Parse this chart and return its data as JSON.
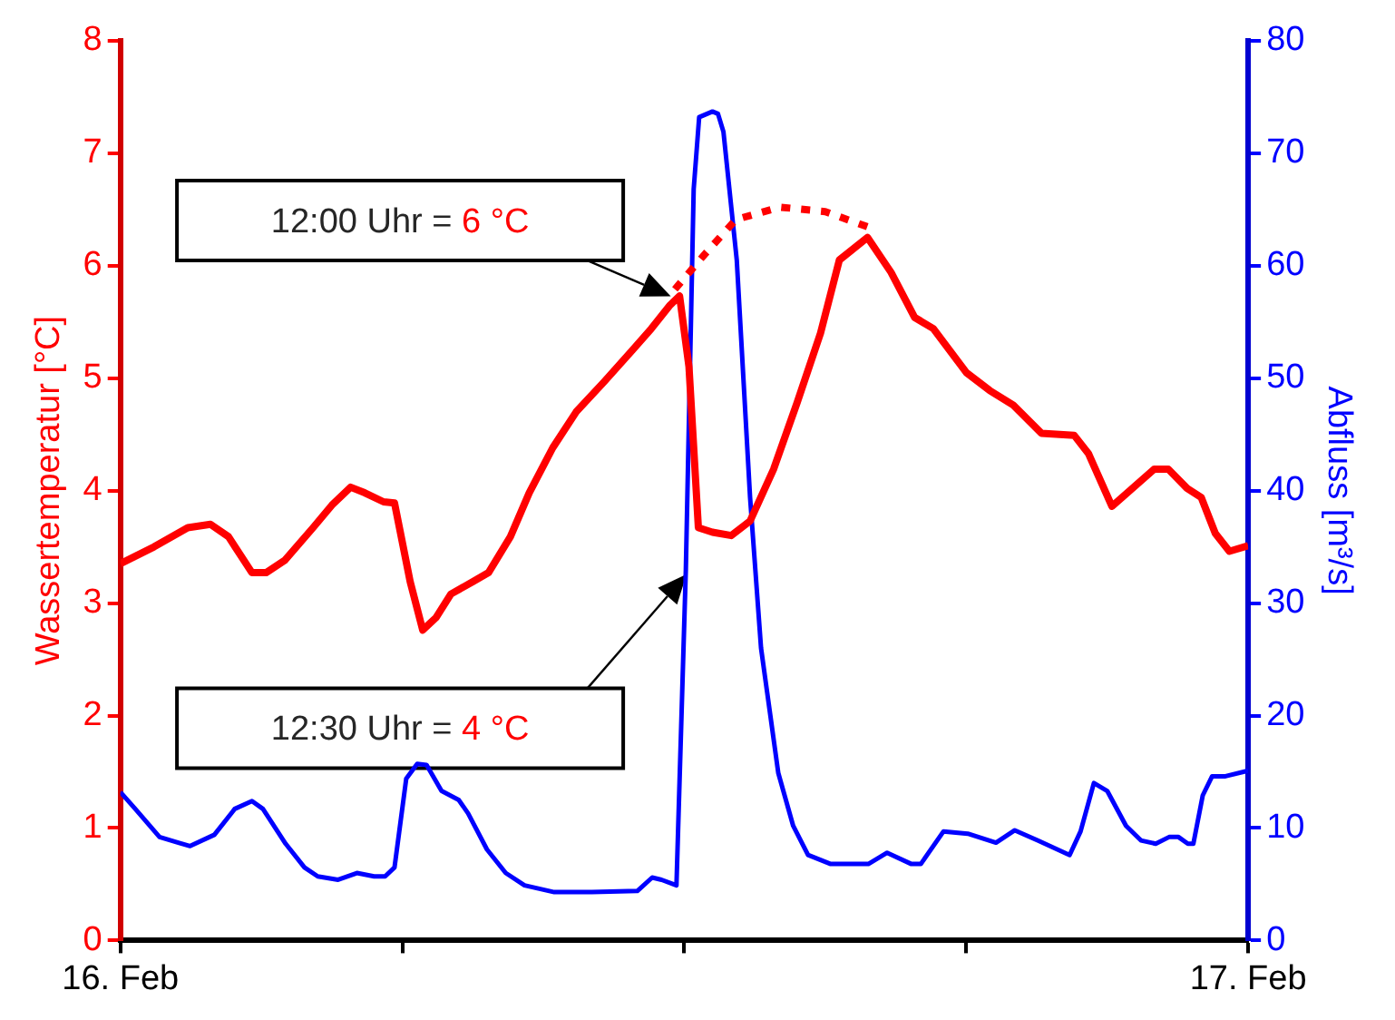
{
  "chart_data": {
    "type": "line",
    "ylabel": "Wassertemperatur [°C]",
    "y2label": "Abfluss [m³/s]",
    "xlim": [
      "--02-16T00:00",
      "--02-17T00:00"
    ],
    "xticks": [
      {
        "value": "--02-16T00:00",
        "label": "16. Feb"
      },
      {
        "value": "--02-16T06:00",
        "label": null
      },
      {
        "value": "--02-16T12:00",
        "label": null
      },
      {
        "value": "--02-16T18:00",
        "label": null
      },
      {
        "value": "--02-17T00:00",
        "label": "17. Feb"
      }
    ],
    "ylim": [
      0,
      8
    ],
    "yticks": [
      0,
      1,
      2,
      3,
      4,
      5,
      6,
      7,
      8
    ],
    "y2lim": [
      0,
      80
    ],
    "y2ticks": [
      0,
      10,
      20,
      30,
      40,
      50,
      60,
      70,
      80
    ],
    "grid": false,
    "legend": false,
    "marker": "none",
    "series": [
      {
        "color": "#ff0000",
        "x": [
          "--02-16T00:00",
          "--02-16T00:43",
          "--02-16T01:26",
          "--02-16T01:55",
          "--02-16T02:18",
          "--02-16T02:48",
          "--02-16T03:06",
          "--02-16T03:30",
          "--02-16T04:06",
          "--02-16T04:30",
          "--02-16T04:54",
          "--02-16T05:12",
          "--02-16T05:36",
          "--02-16T05:50",
          "--02-16T06:10",
          "--02-16T06:26",
          "--02-16T06:43",
          "--02-16T07:02",
          "--02-16T07:30",
          "--02-16T07:50",
          "--02-16T08:18",
          "--02-16T08:42",
          "--02-16T09:12",
          "--02-16T09:42",
          "--02-16T10:18",
          "--02-16T10:54",
          "--02-16T11:18",
          "--02-16T11:42",
          "--02-16T11:54",
          "--02-16T12:06",
          "--02-16T12:18",
          "--02-16T12:36",
          "--02-16T13:00",
          "--02-16T13:24",
          "--02-16T13:54",
          "--02-16T14:24",
          "--02-16T14:54",
          "--02-16T15:18",
          "--02-16T15:54",
          "--02-16T16:24",
          "--02-16T16:54",
          "--02-16T17:18",
          "--02-16T18:00",
          "--02-16T18:30",
          "--02-16T19:00",
          "--02-16T19:36",
          "--02-16T20:18",
          "--02-16T20:36",
          "--02-16T21:06",
          "--02-16T22:00",
          "--02-16T22:18",
          "--02-16T22:42",
          "--02-16T23:00",
          "--02-16T23:18",
          "--02-16T23:36",
          "--02-17T00:00"
        ],
        "values": [
          3.35,
          3.5,
          3.67,
          3.7,
          3.59,
          3.27,
          3.27,
          3.38,
          3.67,
          3.87,
          4.03,
          3.98,
          3.9,
          3.89,
          3.19,
          2.76,
          2.87,
          3.08,
          3.19,
          3.27,
          3.59,
          3.98,
          4.38,
          4.7,
          4.97,
          5.25,
          5.44,
          5.65,
          5.73,
          5.1,
          3.67,
          3.63,
          3.6,
          3.73,
          4.19,
          4.78,
          5.4,
          6.05,
          6.25,
          5.94,
          5.54,
          5.44,
          5.05,
          4.89,
          4.76,
          4.51,
          4.49,
          4.33,
          3.86,
          4.19,
          4.19,
          4.02,
          3.94,
          3.62,
          3.46,
          3.51
        ]
      },
      {
        "color": "#ff0000",
        "line_style": "dotted",
        "x": [
          "--02-16T11:48",
          "--02-16T12:26",
          "--02-16T13:06",
          "--02-16T14:02",
          "--02-16T15:00",
          "--02-16T16:00"
        ],
        "values": [
          5.79,
          6.1,
          6.41,
          6.52,
          6.48,
          6.33
        ]
      },
      {
        "color": "#0000ff",
        "axis": "y2",
        "x": [
          "--02-16T00:00",
          "--02-16T00:19",
          "--02-16T00:50",
          "--02-16T01:14",
          "--02-16T01:29",
          "--02-16T02:00",
          "--02-16T02:26",
          "--02-16T02:48",
          "--02-16T03:02",
          "--02-16T03:31",
          "--02-16T03:55",
          "--02-16T04:12",
          "--02-16T04:38",
          "--02-16T05:02",
          "--02-16T05:24",
          "--02-16T05:38",
          "--02-16T05:50",
          "--02-16T06:05",
          "--02-16T06:19",
          "--02-16T06:31",
          "--02-16T06:50",
          "--02-16T07:12",
          "--02-16T07:24",
          "--02-16T07:48",
          "--02-16T08:12",
          "--02-16T08:36",
          "--02-16T09:14",
          "--02-16T10:02",
          "--02-16T11:00",
          "--02-16T11:19",
          "--02-16T11:31",
          "--02-16T11:50",
          "--02-16T12:02",
          "--02-16T12:12",
          "--02-16T12:19",
          "--02-16T12:36",
          "--02-16T12:43",
          "--02-16T12:50",
          "--02-16T13:07",
          "--02-16T13:24",
          "--02-16T13:38",
          "--02-16T14:00",
          "--02-16T14:19",
          "--02-16T14:38",
          "--02-16T15:07",
          "--02-16T15:55",
          "--02-16T16:19",
          "--02-16T16:50",
          "--02-16T17:02",
          "--02-16T17:31",
          "--02-16T18:02",
          "--02-16T18:38",
          "--02-16T19:02",
          "--02-16T19:31",
          "--02-16T20:12",
          "--02-16T20:26",
          "--02-16T20:43",
          "--02-16T21:00",
          "--02-16T21:24",
          "--02-16T21:43",
          "--02-16T22:02",
          "--02-16T22:19",
          "--02-16T22:31",
          "--02-16T22:43",
          "--02-16T22:50",
          "--02-16T23:02",
          "--02-16T23:14",
          "--02-16T23:31",
          "--02-17T00:00"
        ],
        "values": [
          13.2,
          11.7,
          9.2,
          8.7,
          8.4,
          9.4,
          11.7,
          12.4,
          11.7,
          8.6,
          6.5,
          5.7,
          5.4,
          6.0,
          5.7,
          5.7,
          6.5,
          14.4,
          15.7,
          15.6,
          13.3,
          12.5,
          11.3,
          8.1,
          6.0,
          4.9,
          4.3,
          4.3,
          4.4,
          5.6,
          5.4,
          4.9,
          33,
          66.8,
          73.2,
          73.7,
          73.5,
          71.9,
          60.5,
          39.4,
          26,
          14.9,
          10.2,
          7.6,
          6.8,
          6.8,
          7.8,
          6.8,
          6.8,
          9.7,
          9.5,
          8.7,
          9.8,
          8.9,
          7.6,
          9.7,
          14.0,
          13.3,
          10.2,
          8.9,
          8.6,
          9.2,
          9.2,
          8.6,
          8.6,
          12.9,
          14.6,
          14.6,
          15.1
        ]
      }
    ],
    "annotations": [
      "12:00 Uhr = 6 °C",
      "12:30 Uhr = 4 °C"
    ]
  }
}
